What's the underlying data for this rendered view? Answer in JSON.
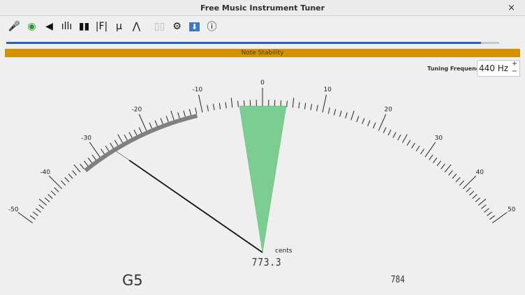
{
  "window": {
    "title": "Free Music Instrument Tuner",
    "close_label": "×"
  },
  "toolbar": [
    {
      "icon": "microphone-icon",
      "glyph": "🎤"
    },
    {
      "icon": "tuning-fork-eye-icon",
      "glyph": "◉"
    },
    {
      "icon": "speaker-icon",
      "glyph": "◀"
    },
    {
      "icon": "waveform-icon",
      "glyph": "ıllı"
    },
    {
      "icon": "spectrum-icon",
      "glyph": "▮▮"
    },
    {
      "icon": "formula-icon",
      "glyph": "|F|"
    },
    {
      "icon": "mu-icon",
      "glyph": "μ"
    },
    {
      "icon": "gaussian-icon",
      "glyph": "⋀"
    },
    {
      "icon": "pause-icon",
      "glyph": "▯▯"
    },
    {
      "icon": "gear-icon",
      "glyph": "⚙"
    },
    {
      "icon": "download-icon",
      "glyph": "⬇"
    },
    {
      "icon": "info-icon",
      "glyph": "ⓘ"
    }
  ],
  "level_progress": 0.963,
  "stability_label": "Note Stability",
  "tuning": {
    "label": "Tuning Frequency",
    "value": "440 Hz",
    "plus": "+",
    "minus": "−"
  },
  "gauge": {
    "labels": [
      "-50",
      "-40",
      "-30",
      "-20",
      "-10",
      "0",
      "10",
      "20",
      "30",
      "40",
      "50"
    ],
    "unit": "cents",
    "value_readout": "773.3",
    "stability_range_cents": [
      -34,
      -11
    ],
    "needle_cents": -27
  },
  "note": "G5",
  "frequency": "784",
  "colors": {
    "progress": "#2a63b5",
    "stability": "#d39300",
    "wedge": "#7bcd91",
    "arc": "#808080"
  }
}
